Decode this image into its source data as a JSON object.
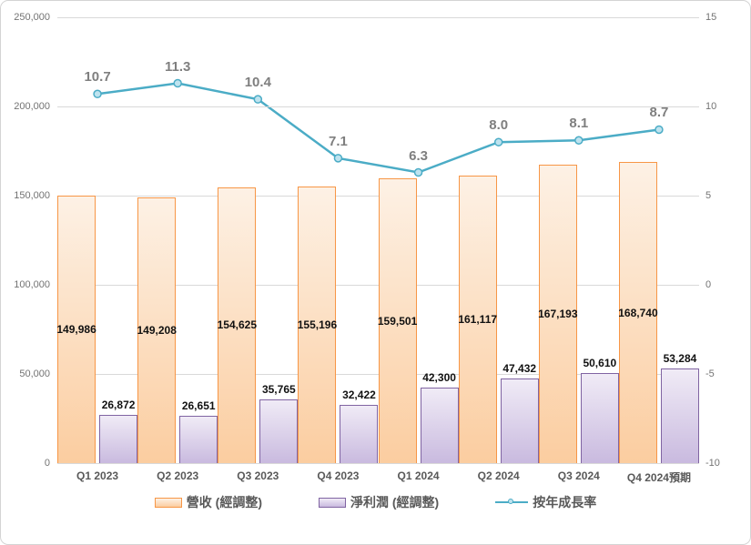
{
  "chart_data": {
    "type": "combo",
    "categories": [
      "Q1 2023",
      "Q2 2023",
      "Q3 2023",
      "Q4 2023",
      "Q1 2024",
      "Q2 2024",
      "Q3 2024",
      "Q4 2024預期"
    ],
    "series": [
      {
        "name": "營收 (經調整)",
        "type": "bar",
        "axis": "left",
        "values": [
          149986,
          149208,
          154625,
          155196,
          159501,
          161117,
          167193,
          168740
        ],
        "labels": [
          "149,986",
          "149,208",
          "154,625",
          "155,196",
          "159,501",
          "161,117",
          "167,193",
          "168,740"
        ],
        "label_placement": "center",
        "fill_top": "#FDF1E5",
        "fill_bottom": "#FBCDA0",
        "border": "#F79646"
      },
      {
        "name": "淨利潤 (經調整)",
        "type": "bar",
        "axis": "left",
        "values": [
          26872,
          26651,
          35765,
          32422,
          42300,
          47432,
          50610,
          53284
        ],
        "labels": [
          "26,872",
          "26,651",
          "35,765",
          "32,422",
          "42,300",
          "47,432",
          "50,610",
          "53,284"
        ],
        "label_placement": "above",
        "fill_top": "#F0EBF6",
        "fill_bottom": "#C9BADF",
        "border": "#8064A2"
      },
      {
        "name": "按年成長率",
        "type": "line",
        "axis": "right",
        "values": [
          10.7,
          11.3,
          10.4,
          7.1,
          6.3,
          8.0,
          8.1,
          8.7
        ],
        "labels": [
          "10.7",
          "11.3",
          "10.4",
          "7.1",
          "6.3",
          "8.0",
          "8.1",
          "8.7"
        ],
        "color": "#4BACC6",
        "marker_fill": "#BEE3EF"
      }
    ],
    "left_axis": {
      "min": 0,
      "max": 250000,
      "tick_labels": [
        "250,000",
        "200,000",
        "150,000",
        "100,000",
        "50,000",
        "0"
      ]
    },
    "right_axis": {
      "min": -10,
      "max": 15,
      "tick_labels": [
        "15",
        "10",
        "5",
        "0",
        "-5",
        "-10"
      ]
    },
    "grid": true,
    "legend_position": "bottom"
  }
}
